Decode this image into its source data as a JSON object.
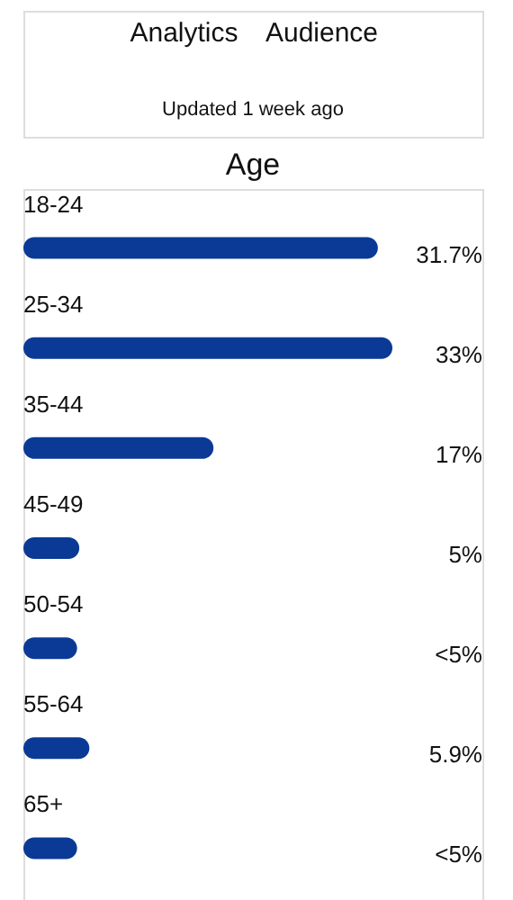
{
  "chart_data": {
    "type": "bar",
    "orientation": "horizontal",
    "title": "Age",
    "categories": [
      "18-24",
      "25-34",
      "35-44",
      "45-49",
      "50-54",
      "55-64",
      "65+"
    ],
    "values": [
      31.7,
      33,
      17,
      5,
      4.8,
      5.9,
      4.8
    ],
    "value_labels": [
      "31.7%",
      "33%",
      "17%",
      "5%",
      "<5%",
      "5.9%",
      "<5%"
    ],
    "color": "#0a3a96",
    "annotations": [
      "Analytics",
      "Audience",
      "Updated 1 week ago"
    ]
  }
}
